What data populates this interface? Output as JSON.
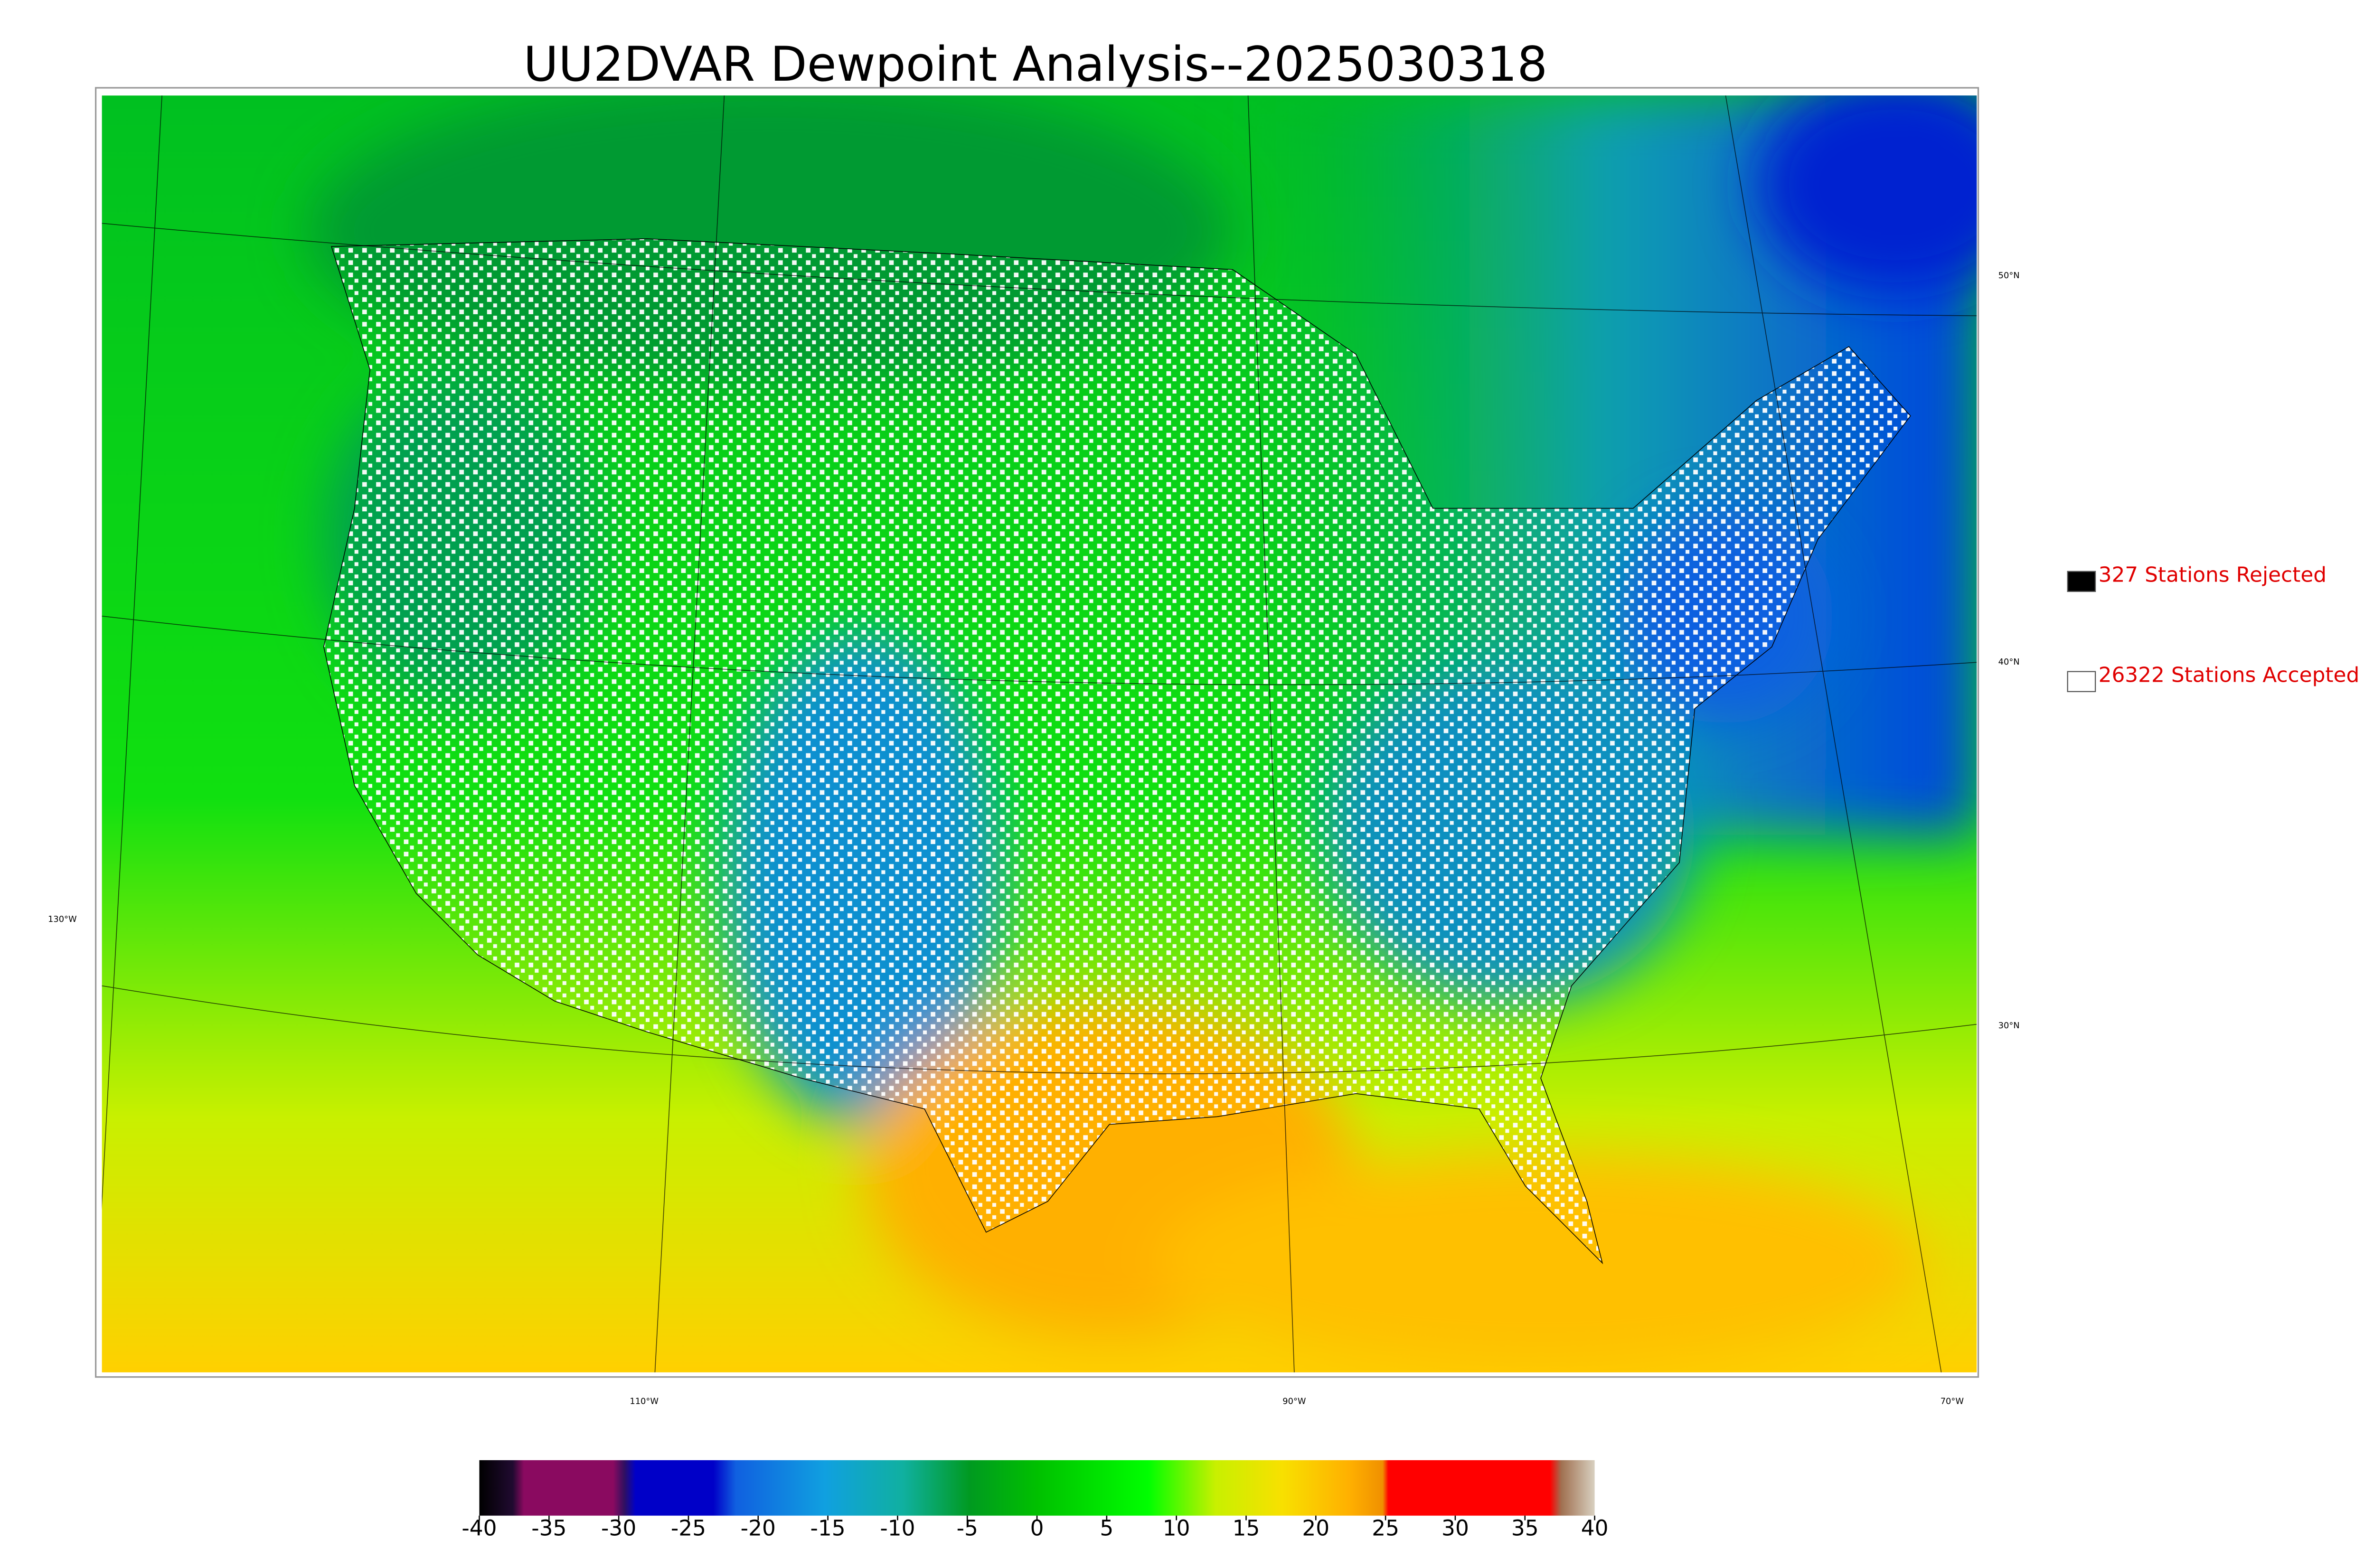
{
  "title": "UU2DVAR Dewpoint Analysis--2025030318",
  "legend": [
    {
      "label": "327 Stations Rejected",
      "color": "#000000"
    },
    {
      "label": "26322 Stations Accepted",
      "color": "#ffffff"
    }
  ],
  "graticule": {
    "lat_labels": [
      "50°N",
      "40°N",
      "30°N"
    ],
    "lon_labels": [
      "130°W",
      "110°W",
      "90°W",
      "70°W"
    ]
  },
  "colorbar": {
    "range": [
      -40,
      40
    ],
    "ticks": [
      -40,
      -35,
      -30,
      -25,
      -20,
      -15,
      -10,
      -5,
      0,
      5,
      10,
      15,
      20,
      25,
      30,
      35,
      40
    ]
  }
}
